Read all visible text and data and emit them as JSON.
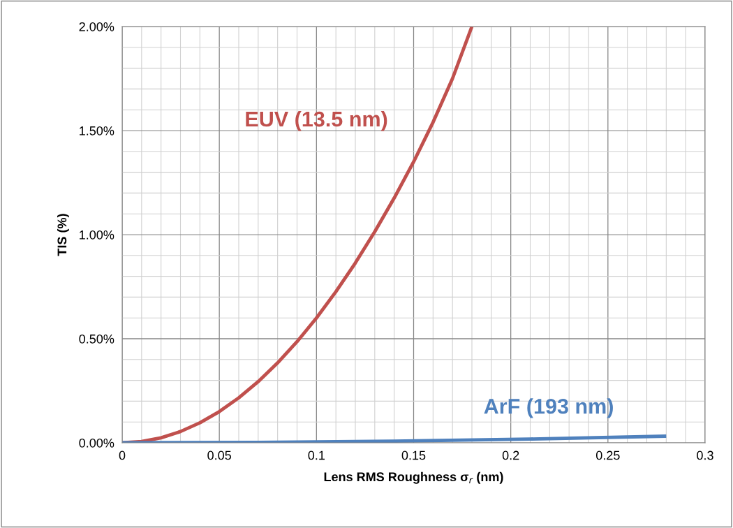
{
  "chart_data": {
    "type": "line",
    "xlabel": "Lens RMS Roughness σ$_{r}$ (nm)",
    "ylabel": "TIS (%)",
    "xlim": [
      0,
      0.3
    ],
    "xticks": [
      0,
      0.05,
      0.1,
      0.15,
      0.2,
      0.25,
      0.3
    ],
    "ylim": [
      0,
      2.0
    ],
    "yticks": [
      {
        "value": 0,
        "label": "0.00%"
      },
      {
        "value": 0.5,
        "label": "0.50%"
      },
      {
        "value": 1.0,
        "label": "1.00%"
      },
      {
        "value": 1.5,
        "label": "1.50%"
      },
      {
        "value": 2.0,
        "label": "2.00%"
      }
    ],
    "grid": true,
    "legend": false,
    "marker": "none",
    "line_style": "solid",
    "series": [
      {
        "name": "EUV (13.5 nm)",
        "color": "#c0504d",
        "x": [
          0,
          0.01,
          0.02,
          0.03,
          0.04,
          0.05,
          0.06,
          0.07,
          0.08,
          0.09,
          0.1,
          0.11,
          0.12,
          0.13,
          0.14,
          0.15,
          0.16,
          0.17,
          0.18
        ],
        "values": [
          0,
          0.006,
          0.024,
          0.054,
          0.096,
          0.15,
          0.216,
          0.294,
          0.384,
          0.486,
          0.6,
          0.726,
          0.864,
          1.014,
          1.176,
          1.35,
          1.54,
          1.75,
          2.0
        ]
      },
      {
        "name": "ArF (193 nm)",
        "color": "#4f81bd",
        "x": [
          0,
          0.07,
          0.14,
          0.21,
          0.28
        ],
        "values": [
          0,
          0.002,
          0.008,
          0.018,
          0.032
        ]
      }
    ]
  }
}
